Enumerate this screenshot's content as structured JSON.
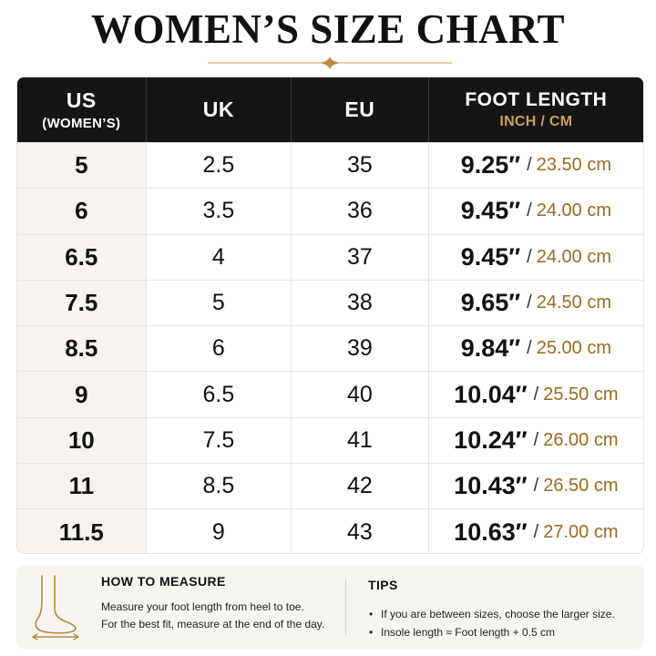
{
  "page": {
    "title": "WOMEN’S SIZE CHART"
  },
  "table": {
    "headers": [
      {
        "main": "US",
        "sub": "(WOMEN’S)"
      },
      {
        "main": "UK",
        "sub": ""
      },
      {
        "main": "EU",
        "sub": ""
      },
      {
        "main": "FOOT LENGTH",
        "sub": "INCH / CM"
      }
    ],
    "rows": [
      {
        "us": "5",
        "uk": "2.5",
        "eu": "35",
        "inch": "9.25″",
        "slash": "/",
        "cm": "23.50 cm"
      },
      {
        "us": "6",
        "uk": "3.5",
        "eu": "36",
        "inch": "9.45″",
        "slash": "/",
        "cm": "24.00 cm"
      },
      {
        "us": "6.5",
        "uk": "4",
        "eu": "37",
        "inch": "9.45″",
        "slash": "/",
        "cm": "24.00 cm"
      },
      {
        "us": "7.5",
        "uk": "5",
        "eu": "38",
        "inch": "9.65″",
        "slash": "/",
        "cm": "24.50 cm"
      },
      {
        "us": "8.5",
        "uk": "6",
        "eu": "39",
        "inch": "9.84″",
        "slash": "/",
        "cm": "25.00 cm"
      },
      {
        "us": "9",
        "uk": "6.5",
        "eu": "40",
        "inch": "10.04″",
        "slash": "/",
        "cm": "25.50 cm"
      },
      {
        "us": "10",
        "uk": "7.5",
        "eu": "41",
        "inch": "10.24″",
        "slash": "/",
        "cm": "26.00 cm"
      },
      {
        "us": "11",
        "uk": "8.5",
        "eu": "42",
        "inch": "10.43″",
        "slash": "/",
        "cm": "26.50 cm"
      },
      {
        "us": "11.5",
        "uk": "9",
        "eu": "43",
        "inch": "10.63″",
        "slash": "/",
        "cm": "27.00 cm"
      }
    ]
  },
  "info": {
    "measure": {
      "title": "HOW TO MEASURE",
      "lines": [
        "Measure your foot length from heel to toe.",
        "For the best fit, measure at the end of the day."
      ]
    },
    "tips": {
      "title": "TIPS",
      "items": [
        "If you are between sizes, choose the larger size.",
        "Insole length ≈ Foot length + 0.5 cm"
      ]
    }
  },
  "colors": {
    "header_bg": "#151515",
    "accent_gold": "#c9a15a",
    "cm_text": "#9a6a1e",
    "first_col_bg": "#f7f4ef",
    "info_bg": "#f7f5f1"
  },
  "icons": [
    "ornament-divider-icon",
    "foot-measure-icon"
  ]
}
